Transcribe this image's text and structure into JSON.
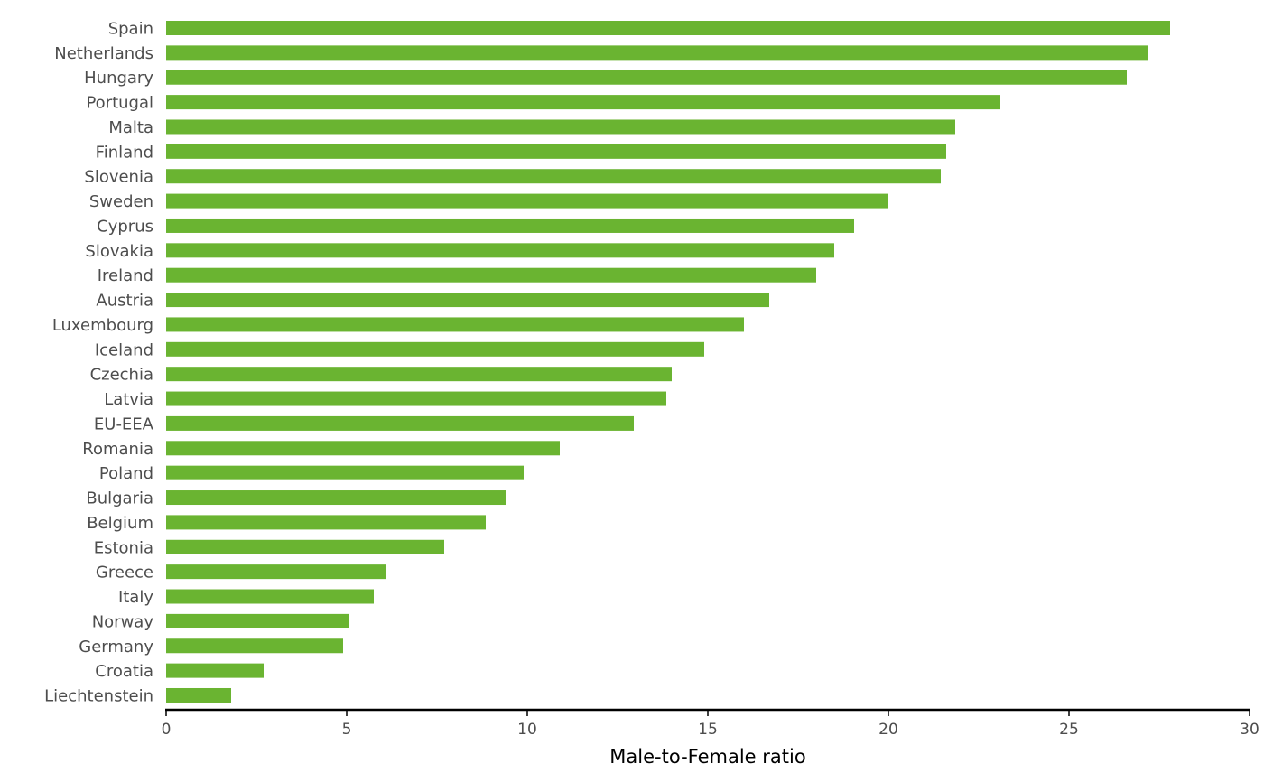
{
  "chart_data": {
    "type": "bar",
    "orientation": "horizontal",
    "xlabel": "Male-to-Female ratio",
    "ylabel": "",
    "xlim": [
      0,
      30
    ],
    "xticks": [
      0,
      5,
      10,
      15,
      20,
      25,
      30
    ],
    "grid": false,
    "bar_color": "#6ab431",
    "categories": [
      "Spain",
      "Netherlands",
      "Hungary",
      "Portugal",
      "Malta",
      "Finland",
      "Slovenia",
      "Sweden",
      "Cyprus",
      "Slovakia",
      "Ireland",
      "Austria",
      "Luxembourg",
      "Iceland",
      "Czechia",
      "Latvia",
      "EU-EEA",
      "Romania",
      "Poland",
      "Bulgaria",
      "Belgium",
      "Estonia",
      "Greece",
      "Italy",
      "Norway",
      "Germany",
      "Croatia",
      "Liechtenstein"
    ],
    "values": [
      27.8,
      27.2,
      26.6,
      23.1,
      21.85,
      21.6,
      21.45,
      20.0,
      19.05,
      18.5,
      18.0,
      16.7,
      16.0,
      14.9,
      14.0,
      13.85,
      12.95,
      10.9,
      9.9,
      9.4,
      8.85,
      7.7,
      6.1,
      5.75,
      5.05,
      4.9,
      2.7,
      1.8
    ]
  }
}
